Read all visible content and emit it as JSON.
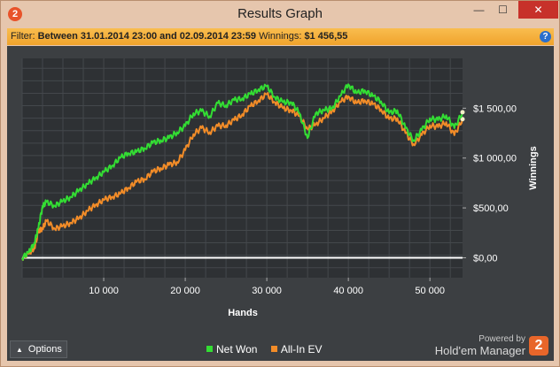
{
  "window": {
    "title": "Results Graph",
    "app_icon": "2",
    "controls": {
      "minimize": "—",
      "maximize": "☐",
      "close": "✕"
    }
  },
  "filter": {
    "prefix": "Filter:",
    "range": "Between 31.01.2014 23:00 and 02.09.2014 23:59",
    "winnings_label": "Winnings:",
    "winnings_value": "$1 456,55"
  },
  "options_label": "Options",
  "legend": [
    {
      "label": "Net Won",
      "color": "#33dd33"
    },
    {
      "label": "All-In EV",
      "color": "#f28c28"
    }
  ],
  "branding": {
    "powered": "Powered by",
    "name": "Hold'em Manager",
    "logo": "2"
  },
  "chart_data": {
    "type": "line",
    "xlabel": "Hands",
    "ylabel": "Winnings",
    "x_ticks": [
      10000,
      20000,
      30000,
      40000,
      50000
    ],
    "x_tick_labels": [
      "10 000",
      "20 000",
      "30 000",
      "40 000",
      "50 000"
    ],
    "y_ticks": [
      0,
      500,
      1000,
      1500
    ],
    "y_tick_labels": [
      "$0,00",
      "$500,00",
      "$1 000,00",
      "$1 500,00"
    ],
    "xlim": [
      0,
      54000
    ],
    "ylim": [
      -200,
      2000
    ],
    "grid": true,
    "legend_position": "bottom-center",
    "series": [
      {
        "name": "Net Won",
        "color": "#33dd33",
        "points": [
          [
            0,
            0
          ],
          [
            800,
            50
          ],
          [
            1500,
            150
          ],
          [
            2000,
            300
          ],
          [
            2500,
            520
          ],
          [
            3000,
            560
          ],
          [
            4000,
            520
          ],
          [
            5000,
            570
          ],
          [
            6000,
            610
          ],
          [
            7000,
            680
          ],
          [
            8000,
            740
          ],
          [
            9000,
            800
          ],
          [
            10000,
            860
          ],
          [
            11000,
            920
          ],
          [
            12000,
            1000
          ],
          [
            13000,
            1050
          ],
          [
            14000,
            1060
          ],
          [
            15000,
            1100
          ],
          [
            16000,
            1150
          ],
          [
            17000,
            1180
          ],
          [
            18000,
            1200
          ],
          [
            19000,
            1260
          ],
          [
            20000,
            1320
          ],
          [
            21000,
            1450
          ],
          [
            22000,
            1470
          ],
          [
            23000,
            1420
          ],
          [
            24000,
            1550
          ],
          [
            25000,
            1530
          ],
          [
            26000,
            1580
          ],
          [
            27000,
            1600
          ],
          [
            28000,
            1640
          ],
          [
            29000,
            1690
          ],
          [
            30000,
            1720
          ],
          [
            31000,
            1610
          ],
          [
            32000,
            1560
          ],
          [
            33000,
            1560
          ],
          [
            34000,
            1450
          ],
          [
            35000,
            1200
          ],
          [
            36000,
            1450
          ],
          [
            37000,
            1480
          ],
          [
            38000,
            1500
          ],
          [
            39000,
            1620
          ],
          [
            40000,
            1740
          ],
          [
            41000,
            1650
          ],
          [
            42000,
            1680
          ],
          [
            43000,
            1620
          ],
          [
            44000,
            1570
          ],
          [
            45000,
            1450
          ],
          [
            46000,
            1480
          ],
          [
            47000,
            1300
          ],
          [
            48000,
            1180
          ],
          [
            49000,
            1280
          ],
          [
            50000,
            1400
          ],
          [
            51000,
            1380
          ],
          [
            52000,
            1430
          ],
          [
            53000,
            1300
          ],
          [
            54000,
            1460
          ]
        ]
      },
      {
        "name": "All-In EV",
        "color": "#f28c28",
        "points": [
          [
            0,
            0
          ],
          [
            800,
            40
          ],
          [
            1500,
            100
          ],
          [
            2000,
            260
          ],
          [
            2500,
            300
          ],
          [
            3000,
            370
          ],
          [
            4000,
            290
          ],
          [
            5000,
            320
          ],
          [
            6000,
            350
          ],
          [
            7000,
            400
          ],
          [
            8000,
            470
          ],
          [
            9000,
            530
          ],
          [
            10000,
            580
          ],
          [
            11000,
            610
          ],
          [
            12000,
            640
          ],
          [
            13000,
            700
          ],
          [
            14000,
            760
          ],
          [
            15000,
            790
          ],
          [
            16000,
            860
          ],
          [
            17000,
            900
          ],
          [
            18000,
            930
          ],
          [
            19000,
            960
          ],
          [
            20000,
            1080
          ],
          [
            21000,
            1240
          ],
          [
            22000,
            1300
          ],
          [
            23000,
            1260
          ],
          [
            24000,
            1320
          ],
          [
            25000,
            1330
          ],
          [
            26000,
            1380
          ],
          [
            27000,
            1440
          ],
          [
            28000,
            1520
          ],
          [
            29000,
            1580
          ],
          [
            30000,
            1640
          ],
          [
            31000,
            1560
          ],
          [
            32000,
            1500
          ],
          [
            33000,
            1480
          ],
          [
            34000,
            1420
          ],
          [
            35000,
            1290
          ],
          [
            36000,
            1340
          ],
          [
            37000,
            1400
          ],
          [
            38000,
            1470
          ],
          [
            39000,
            1560
          ],
          [
            40000,
            1620
          ],
          [
            41000,
            1550
          ],
          [
            42000,
            1580
          ],
          [
            43000,
            1540
          ],
          [
            44000,
            1490
          ],
          [
            45000,
            1390
          ],
          [
            46000,
            1400
          ],
          [
            47000,
            1250
          ],
          [
            48000,
            1140
          ],
          [
            49000,
            1230
          ],
          [
            50000,
            1330
          ],
          [
            51000,
            1310
          ],
          [
            52000,
            1360
          ],
          [
            53000,
            1230
          ],
          [
            54000,
            1390
          ]
        ]
      }
    ]
  }
}
